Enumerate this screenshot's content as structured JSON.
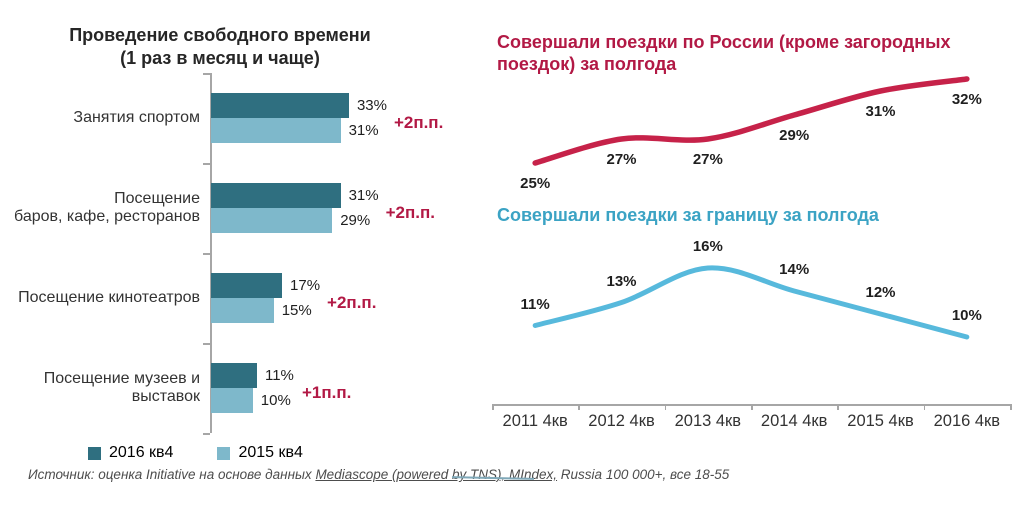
{
  "colors": {
    "bar_2016": "#2F6F80",
    "bar_2015": "#7EB8CB",
    "red_line": "#C62249",
    "red_text": "#B21945",
    "blue_line": "#57B9DC",
    "blue_text": "#3BA3C4",
    "axis": "#A6A6A6",
    "label_text": "#1F1F1F",
    "source_text": "#4D4D4D"
  },
  "left_title": {
    "line1": "Проведение свободного времени",
    "line2": "(1 раз в месяц и чаще)"
  },
  "chart_data": [
    {
      "type": "bar",
      "orientation": "horizontal",
      "title": "Проведение свободного времени (1 раз в месяц и чаще)",
      "categories": [
        "Занятия спортом",
        "Посещение баров, кафе, ресторанов",
        "Посещение кинотеатров",
        "Посещение музеев и выставок"
      ],
      "categories_display": [
        "Занятия спортом",
        "Посещение\nбаров, кафе, ресторанов",
        "Посещение кинотеатров",
        "Посещение музеев и\nвыставок"
      ],
      "series": [
        {
          "name": "2016 кв4",
          "color": "#2F6F80",
          "values": [
            33,
            31,
            17,
            11
          ]
        },
        {
          "name": "2015 кв4",
          "color": "#7EB8CB",
          "values": [
            31,
            29,
            15,
            10
          ]
        }
      ],
      "annotations": [
        "+2п.п.",
        "+2п.п.",
        "+2п.п.",
        "+1п.п."
      ],
      "value_suffix": "%",
      "xlim": [
        0,
        55
      ],
      "grid": false,
      "legend_position": "bottom"
    },
    {
      "type": "line",
      "title": "Совершали поездки по России (кроме загородных поездок) за полгода",
      "x": [
        "2011 4кв",
        "2012 4кв",
        "2013 4кв",
        "2014 4кв",
        "2015 4кв",
        "2016 4кв"
      ],
      "values": [
        25,
        27,
        27,
        29,
        31,
        32
      ],
      "color": "#C62249",
      "value_suffix": "%",
      "ylim": [
        20,
        35
      ],
      "grid": false,
      "label_position": "below"
    },
    {
      "type": "line",
      "title": "Совершали поездки за границу за полгода",
      "x": [
        "2011 4кв",
        "2012 4кв",
        "2013 4кв",
        "2014 4кв",
        "2015 4кв",
        "2016 4кв"
      ],
      "values": [
        11,
        13,
        16,
        14,
        12,
        10
      ],
      "color": "#57B9DC",
      "value_suffix": "%",
      "ylim": [
        5,
        20
      ],
      "grid": false,
      "label_position": "above"
    }
  ],
  "source": {
    "prefix": "Источник: оценка Initiative на основе данных ",
    "underlined": "Mediascope (powered by TNS), MIndex,",
    "suffix": " Russia 100 000+, все 18-55"
  }
}
